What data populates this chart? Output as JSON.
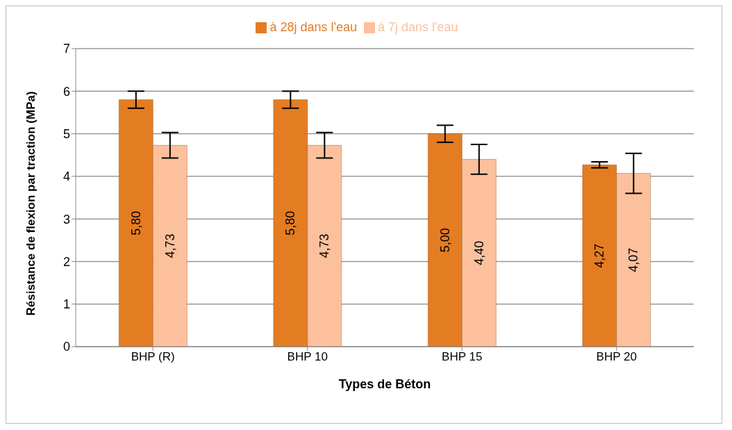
{
  "chart_data": {
    "type": "bar",
    "xlabel": "Types de Béton",
    "ylabel": "Résistance de flexion par traction (MPa)",
    "categories": [
      "BHP (R)",
      "BHP 10",
      "BHP 15",
      "BHP 20"
    ],
    "series": [
      {
        "name": "à 28j dans l'eau",
        "color": "#e47c22",
        "values": [
          5.8,
          5.8,
          5.0,
          4.27
        ],
        "errors": [
          0.2,
          0.2,
          0.2,
          0.07
        ],
        "value_labels": [
          "5,80",
          "5,80",
          "5,00",
          "4,27"
        ]
      },
      {
        "name": "à 7j dans l'eau",
        "color": "#fcc09c",
        "values": [
          4.73,
          4.73,
          4.4,
          4.07
        ],
        "errors": [
          0.3,
          0.3,
          0.35,
          0.47
        ],
        "value_labels": [
          "4,73",
          "4,73",
          "4,40",
          "4,07"
        ]
      }
    ],
    "ylim": [
      0,
      7
    ],
    "yticks": [
      0,
      1,
      2,
      3,
      4,
      5,
      6,
      7
    ],
    "grid": "y",
    "legend": "top"
  }
}
